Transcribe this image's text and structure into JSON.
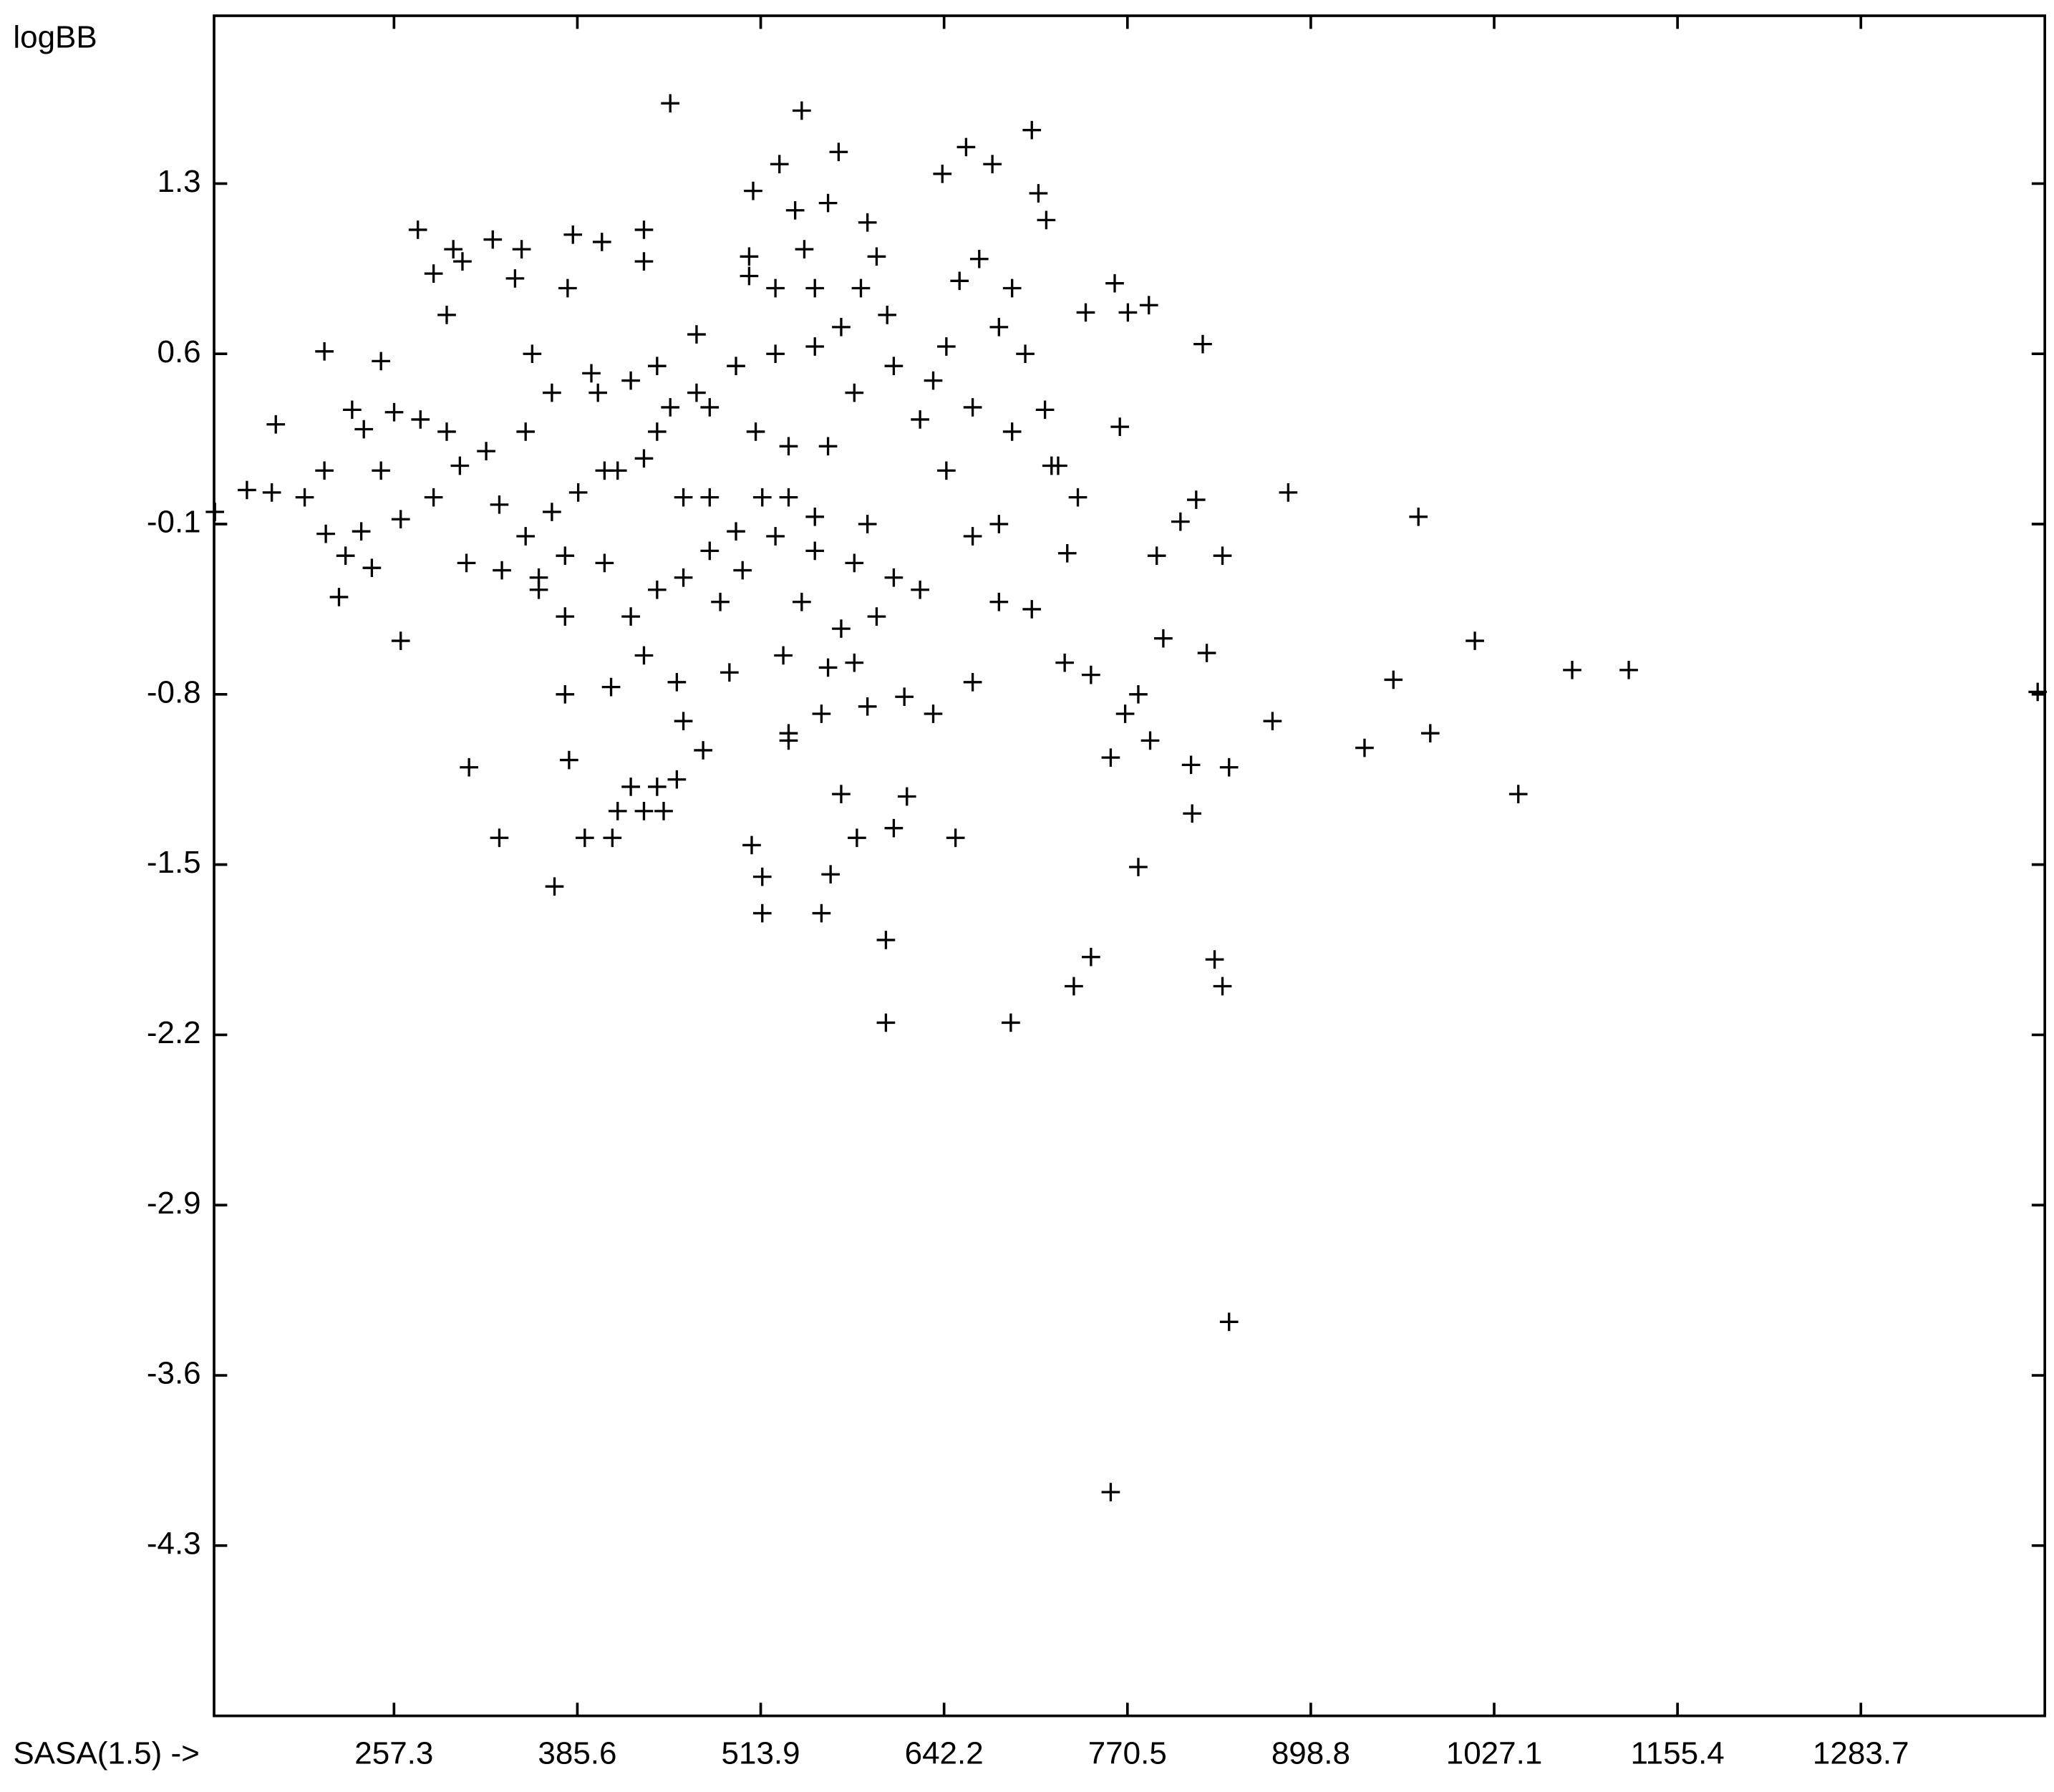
{
  "chart_data": {
    "type": "scatter",
    "xlabel": "SASA(1.5) ->",
    "ylabel": "logBB",
    "color": "#000000",
    "marker": "+",
    "xlim": [
      131.4,
      1412.4
    ],
    "ylim": [
      -5.0,
      1.99
    ],
    "xticks": [
      257.3,
      385.6,
      513.9,
      642.2,
      770.5,
      898.8,
      1027.1,
      1155.4,
      1283.7
    ],
    "yticks": [
      1.3,
      0.6,
      -0.1,
      -0.8,
      -1.5,
      -2.2,
      -2.9,
      -3.6,
      -4.3
    ],
    "x": [
      154.4,
      171.8,
      194.8,
      174.6,
      208.6,
      208.6,
      209.6,
      218.8,
      223.4,
      228,
      236.2,
      241.8,
      248.2,
      257.4,
      262,
      262,
      274,
      285,
      294.2,
      298.8,
      305.2,
      308,
      309.8,
      326.4,
      331,
      332.8,
      346.6,
      342,
      354,
      358.6,
      369.6,
      377,
      379.8,
      382.5,
      378.8,
      390.8,
      402.8,
      410.1,
      413.8,
      432.2,
      432.2,
      446,
      455.2,
      450.6,
      459.8,
      473.6,
      492,
      505.8,
      508.6,
      507.6,
      515,
      515,
      527,
      542.6,
      538,
      544.4,
      533.4,
      556.4,
      562.8,
      568.4,
      561,
      570.2,
      581.2,
      588.6,
      595,
      601.5,
      601.5,
      607,
      616.2,
      614.4,
      641,
      657.6,
      650.2,
      666.8,
      676,
      703.6,
      708.2,
      713.7,
      688.9,
      733,
      745,
      761.6,
      758.8,
      741.3,
      770.8,
      785.5,
      765.2,
      778.1,
      758.8,
      786.4,
      791,
      795.6,
      807.6,
      818.6,
      823.2,
      815,
      815.8,
      831.5,
      837,
      841.6,
      837,
      841.6,
      826,
      872,
      883,
      936.4,
      956.6,
      974.1,
      982.4,
      1013.6,
      1044,
      1081.7,
      1121.3,
      1407.4,
      367.8,
      386.2,
      413.8,
      441.4,
      469,
      496.6,
      524.2,
      551.8,
      579.4,
      607,
      634.6,
      662.2,
      689.8,
      717.4,
      478.2,
      496.6,
      524.2,
      551.8,
      579.4,
      607,
      542.6,
      570.2,
      595,
      625.4,
      662.2,
      680.6,
      703.6,
      680.6,
      662.2,
      634.6,
      459.8,
      441.4,
      423,
      432.2,
      404.6,
      377,
      349.4,
      331,
      321.8,
      303.4,
      294.2,
      275.8,
      285,
      248.2,
      234.4,
      349.4,
      367.8,
      395.4,
      423,
      450.6,
      478.2,
      510.4,
      533.4,
      561,
      404.6,
      432.2,
      459.8,
      515,
      533.4,
      551.8,
      588.6,
      501.2,
      529.7,
      561,
      579.4,
      588.6,
      556.4,
      533.4,
      726.6,
      745,
      778.1,
      768.9,
      728.4,
      735.8,
      722,
      643.8,
      625.4,
      643.8,
      680.6,
      699,
      712.8,
      653,
      689.8,
      570.2,
      602.4,
      584,
      524.2,
      505.8,
      551.8,
      469,
      441.4,
      400,
      441.4,
      432.2,
      423,
      409.2,
      377,
      358.6,
      455.2,
      485.6,
      478.2,
      132
    ],
    "y": [
      0.04,
      0.03,
      0.01,
      0.31,
      0.61,
      0.12,
      -0.14,
      -0.4,
      -0.23,
      0.37,
      0.29,
      -0.28,
      0.57,
      0.36,
      -0.58,
      -0.08,
      1.11,
      0.93,
      0.76,
      1.03,
      0.98,
      -0.26,
      -1.1,
      1.07,
      -1.39,
      -0.29,
      1.03,
      0.91,
      0.6,
      -0.32,
      -1.59,
      -0.8,
      -1.07,
      1.09,
      0.87,
      -1.39,
      1.06,
      -1.39,
      -1.28,
      1.11,
      0.98,
      -1.28,
      -1.15,
      1.63,
      -0.91,
      -1.03,
      -0.71,
      1.0,
      1.27,
      -1.42,
      -1.55,
      -1.7,
      1.38,
      1.6,
      1.19,
      1.03,
      -0.99,
      -1.7,
      -1.54,
      1.43,
      1.22,
      -1.21,
      -1.39,
      1.14,
      1.0,
      -1.81,
      -2.15,
      -1.35,
      -1.22,
      -0.81,
      1.34,
      1.45,
      -1.39,
      0.99,
      1.38,
      1.52,
      1.26,
      1.15,
      -2.15,
      -2.0,
      -1.88,
      0.89,
      -4.08,
      0.77,
      0.77,
      0.8,
      0.3,
      -1.51,
      -1.06,
      -0.99,
      -0.23,
      -0.57,
      -0.09,
      0.0,
      0.64,
      -1.09,
      -1.29,
      -1.89,
      -2.0,
      -3.38,
      -0.23,
      -1.1,
      -0.63,
      -0.91,
      0.03,
      -1.02,
      -0.74,
      -0.07,
      -0.96,
      -0.58,
      -1.21,
      -0.7,
      -0.7,
      -0.79,
      -0.05,
      0.03,
      0.12,
      0.28,
      0.44,
      0.55,
      0.6,
      0.63,
      0.44,
      0.55,
      0.49,
      0.38,
      0.28,
      0.14,
      0.01,
      -0.13,
      -0.15,
      -0.21,
      -0.26,
      -0.32,
      -0.42,
      -0.53,
      -0.48,
      -0.37,
      -0.15,
      -0.1,
      -0.45,
      -0.42,
      -0.75,
      -0.88,
      -0.32,
      -0.37,
      -0.48,
      -0.64,
      -0.26,
      -0.23,
      -0.15,
      -0.02,
      0.2,
      0.14,
      0.28,
      0.33,
      0.01,
      0.12,
      -0.13,
      0.28,
      0.44,
      0.52,
      0.49,
      0.38,
      0.38,
      0.28,
      0.22,
      0.22,
      0.12,
      0.17,
      0.01,
      0.01,
      0.01,
      -0.07,
      -0.1,
      -0.29,
      -0.64,
      -0.69,
      -0.67,
      -0.85,
      -0.88,
      -0.96,
      -0.67,
      -0.72,
      -0.8,
      -0.88,
      -0.22,
      0.01,
      0.14,
      0.12,
      0.33,
      0.63,
      0.71,
      0.6,
      0.37,
      0.9,
      0.87,
      0.71,
      0.76,
      0.87,
      0.87,
      0.92,
      0.87,
      0.68,
      0.55,
      0.44,
      -1.18,
      -1.28,
      -1.18,
      -0.77,
      -0.48,
      -0.37,
      -0.75,
      -0.42,
      -0.21,
      -0.05
    ]
  }
}
